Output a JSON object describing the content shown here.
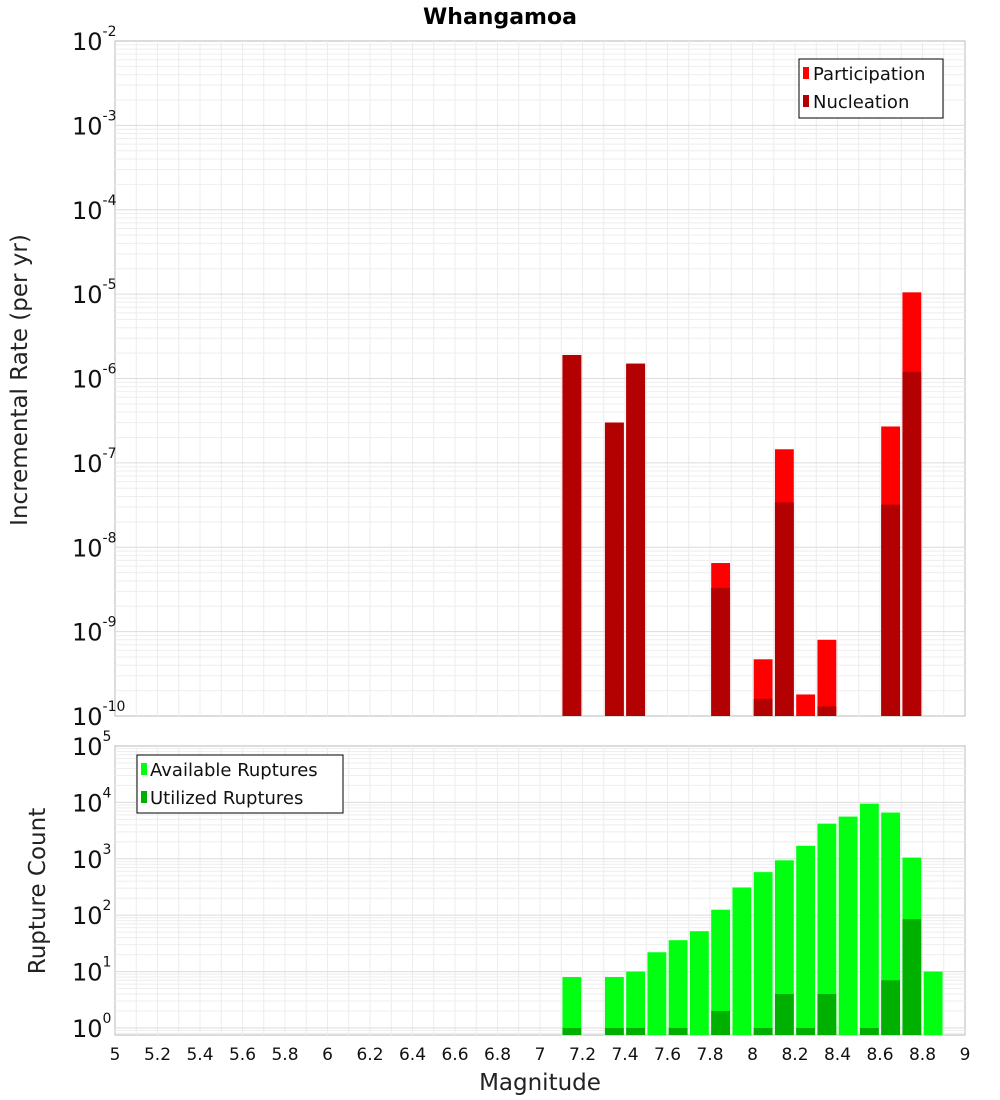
{
  "chart_data": [
    {
      "type": "bar",
      "title": "Whangamoa",
      "xlabel": "",
      "ylabel": "Incremental Rate (per yr)",
      "y_scale": "log",
      "ylim": [
        1e-10,
        0.01
      ],
      "xlim": [
        5,
        9
      ],
      "grid": true,
      "legend_position": "top-right",
      "bin_width": 0.1,
      "y_ticks": [
        {
          "base": "10",
          "exp": "-2"
        },
        {
          "base": "10",
          "exp": "-3"
        },
        {
          "base": "10",
          "exp": "-4"
        },
        {
          "base": "10",
          "exp": "-5"
        },
        {
          "base": "10",
          "exp": "-6"
        },
        {
          "base": "10",
          "exp": "-7"
        },
        {
          "base": "10",
          "exp": "-8"
        },
        {
          "base": "10",
          "exp": "-9"
        },
        {
          "base": "10",
          "exp": "-10"
        }
      ],
      "series": [
        {
          "name": "Participation",
          "color": "#ff0000",
          "points": [
            {
              "x": 7.15,
              "y": 1.9e-06
            },
            {
              "x": 7.35,
              "y": 3e-07
            },
            {
              "x": 7.45,
              "y": 1.5e-06
            },
            {
              "x": 7.85,
              "y": 6.5e-09
            },
            {
              "x": 8.05,
              "y": 4.7e-10
            },
            {
              "x": 8.15,
              "y": 1.45e-07
            },
            {
              "x": 8.25,
              "y": 1.8e-10
            },
            {
              "x": 8.35,
              "y": 8e-10
            },
            {
              "x": 8.65,
              "y": 2.7e-07
            },
            {
              "x": 8.75,
              "y": 1.05e-05
            }
          ]
        },
        {
          "name": "Nucleation",
          "color": "#b30000",
          "points": [
            {
              "x": 7.15,
              "y": 1.9e-06
            },
            {
              "x": 7.35,
              "y": 3e-07
            },
            {
              "x": 7.45,
              "y": 1.5e-06
            },
            {
              "x": 7.85,
              "y": 3.3e-09
            },
            {
              "x": 8.05,
              "y": 1.6e-10
            },
            {
              "x": 8.15,
              "y": 3.4e-08
            },
            {
              "x": 8.35,
              "y": 1.3e-10
            },
            {
              "x": 8.65,
              "y": 3.2e-08
            },
            {
              "x": 8.75,
              "y": 1.2e-06
            }
          ]
        }
      ]
    },
    {
      "type": "bar",
      "title": "",
      "xlabel": "Magnitude",
      "ylabel": "Rupture Count",
      "y_scale": "log",
      "ylim": [
        0.75,
        100000.0
      ],
      "xlim": [
        5,
        9
      ],
      "grid": true,
      "legend_position": "top-left",
      "bin_width": 0.1,
      "x_ticks": [
        "5",
        "5.2",
        "5.4",
        "5.6",
        "5.8",
        "6",
        "6.2",
        "6.4",
        "6.6",
        "6.8",
        "7",
        "7.2",
        "7.4",
        "7.6",
        "7.8",
        "8",
        "8.2",
        "8.4",
        "8.6",
        "8.8",
        "9"
      ],
      "y_ticks": [
        {
          "base": "10",
          "exp": "5"
        },
        {
          "base": "10",
          "exp": "4"
        },
        {
          "base": "10",
          "exp": "3"
        },
        {
          "base": "10",
          "exp": "2"
        },
        {
          "base": "10",
          "exp": "1"
        },
        {
          "base": "10",
          "exp": "0"
        }
      ],
      "series": [
        {
          "name": "Available Ruptures",
          "color": "#00ff10",
          "points": [
            {
              "x": 7.15,
              "y": 8
            },
            {
              "x": 7.35,
              "y": 8
            },
            {
              "x": 7.45,
              "y": 10
            },
            {
              "x": 7.55,
              "y": 22
            },
            {
              "x": 7.65,
              "y": 36
            },
            {
              "x": 7.75,
              "y": 52
            },
            {
              "x": 7.85,
              "y": 125
            },
            {
              "x": 7.95,
              "y": 310
            },
            {
              "x": 8.05,
              "y": 580
            },
            {
              "x": 8.15,
              "y": 940
            },
            {
              "x": 8.25,
              "y": 1700
            },
            {
              "x": 8.35,
              "y": 4200
            },
            {
              "x": 8.45,
              "y": 5600
            },
            {
              "x": 8.55,
              "y": 9500
            },
            {
              "x": 8.65,
              "y": 6600
            },
            {
              "x": 8.75,
              "y": 1050
            },
            {
              "x": 8.85,
              "y": 10
            }
          ]
        },
        {
          "name": "Utilized Ruptures",
          "color": "#00b000",
          "points": [
            {
              "x": 7.15,
              "y": 1
            },
            {
              "x": 7.35,
              "y": 1
            },
            {
              "x": 7.45,
              "y": 1
            },
            {
              "x": 7.65,
              "y": 1
            },
            {
              "x": 7.85,
              "y": 2
            },
            {
              "x": 8.05,
              "y": 1
            },
            {
              "x": 8.15,
              "y": 4
            },
            {
              "x": 8.25,
              "y": 1
            },
            {
              "x": 8.35,
              "y": 4
            },
            {
              "x": 8.55,
              "y": 1
            },
            {
              "x": 8.65,
              "y": 7
            },
            {
              "x": 8.75,
              "y": 85
            }
          ]
        }
      ]
    }
  ]
}
